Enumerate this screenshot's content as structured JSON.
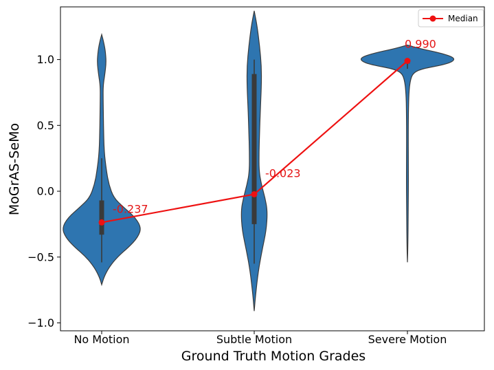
{
  "chart_data": {
    "type": "violin",
    "xlabel": "Ground Truth Motion Grades",
    "ylabel": "MoGrAS-SeMo",
    "categories": [
      "No Motion",
      "Subtle Motion",
      "Severe Motion"
    ],
    "ylim": [
      -1.06,
      1.4
    ],
    "yticks": [
      -1.0,
      -0.5,
      0.0,
      0.5,
      1.0
    ],
    "ytick_labels": [
      "−1.0",
      "−0.5",
      "0.0",
      "0.5",
      "1.0"
    ],
    "grid": false,
    "violins": [
      {
        "category": "No Motion",
        "min": -0.71,
        "max": 1.19,
        "q1": -0.33,
        "q3": -0.07,
        "whisker_low": -0.54,
        "whisker_high": 0.25,
        "median": -0.237,
        "density": [
          [
            -0.71,
            0.0
          ],
          [
            -0.65,
            0.02
          ],
          [
            -0.58,
            0.06
          ],
          [
            -0.5,
            0.13
          ],
          [
            -0.42,
            0.23
          ],
          [
            -0.35,
            0.3
          ],
          [
            -0.28,
            0.33
          ],
          [
            -0.2,
            0.28
          ],
          [
            -0.12,
            0.18
          ],
          [
            -0.05,
            0.1
          ],
          [
            0.05,
            0.06
          ],
          [
            0.15,
            0.04
          ],
          [
            0.3,
            0.02
          ],
          [
            0.5,
            0.015
          ],
          [
            0.7,
            0.012
          ],
          [
            0.8,
            0.012
          ],
          [
            0.88,
            0.025
          ],
          [
            0.98,
            0.038
          ],
          [
            1.07,
            0.03
          ],
          [
            1.14,
            0.015
          ],
          [
            1.19,
            0.0
          ]
        ]
      },
      {
        "category": "Subtle Motion",
        "min": -0.91,
        "max": 1.37,
        "q1": -0.25,
        "q3": 0.89,
        "whisker_low": -0.55,
        "whisker_high": 1.0,
        "median": -0.023,
        "density": [
          [
            -0.91,
            0.0
          ],
          [
            -0.8,
            0.01
          ],
          [
            -0.6,
            0.035
          ],
          [
            -0.45,
            0.065
          ],
          [
            -0.3,
            0.1
          ],
          [
            -0.15,
            0.11
          ],
          [
            -0.05,
            0.09
          ],
          [
            0.05,
            0.06
          ],
          [
            0.15,
            0.04
          ],
          [
            0.3,
            0.04
          ],
          [
            0.45,
            0.045
          ],
          [
            0.6,
            0.05
          ],
          [
            0.8,
            0.06
          ],
          [
            0.95,
            0.06
          ],
          [
            1.1,
            0.045
          ],
          [
            1.25,
            0.025
          ],
          [
            1.37,
            0.0
          ]
        ]
      },
      {
        "category": "Severe Motion",
        "min": -0.54,
        "max": 1.11,
        "q1": 0.97,
        "q3": 1.0,
        "whisker_low": 0.93,
        "whisker_high": 1.01,
        "median": 0.99,
        "density": [
          [
            -0.54,
            0.0
          ],
          [
            -0.4,
            0.004
          ],
          [
            -0.2,
            0.006
          ],
          [
            0.0,
            0.008
          ],
          [
            0.2,
            0.008
          ],
          [
            0.4,
            0.007
          ],
          [
            0.6,
            0.008
          ],
          [
            0.75,
            0.012
          ],
          [
            0.85,
            0.025
          ],
          [
            0.9,
            0.05
          ],
          [
            0.93,
            0.12
          ],
          [
            0.96,
            0.3
          ],
          [
            0.99,
            0.39
          ],
          [
            1.02,
            0.38
          ],
          [
            1.05,
            0.27
          ],
          [
            1.08,
            0.12
          ],
          [
            1.11,
            0.0
          ]
        ]
      }
    ],
    "median_line": {
      "name": "Median",
      "values": [
        -0.237,
        -0.023,
        0.99
      ],
      "labels": [
        "-0.237",
        "-0.023",
        "0.990"
      ],
      "color": "#ee1111"
    },
    "violin_color": "#2e75b0",
    "legend_placement": "top-right"
  }
}
